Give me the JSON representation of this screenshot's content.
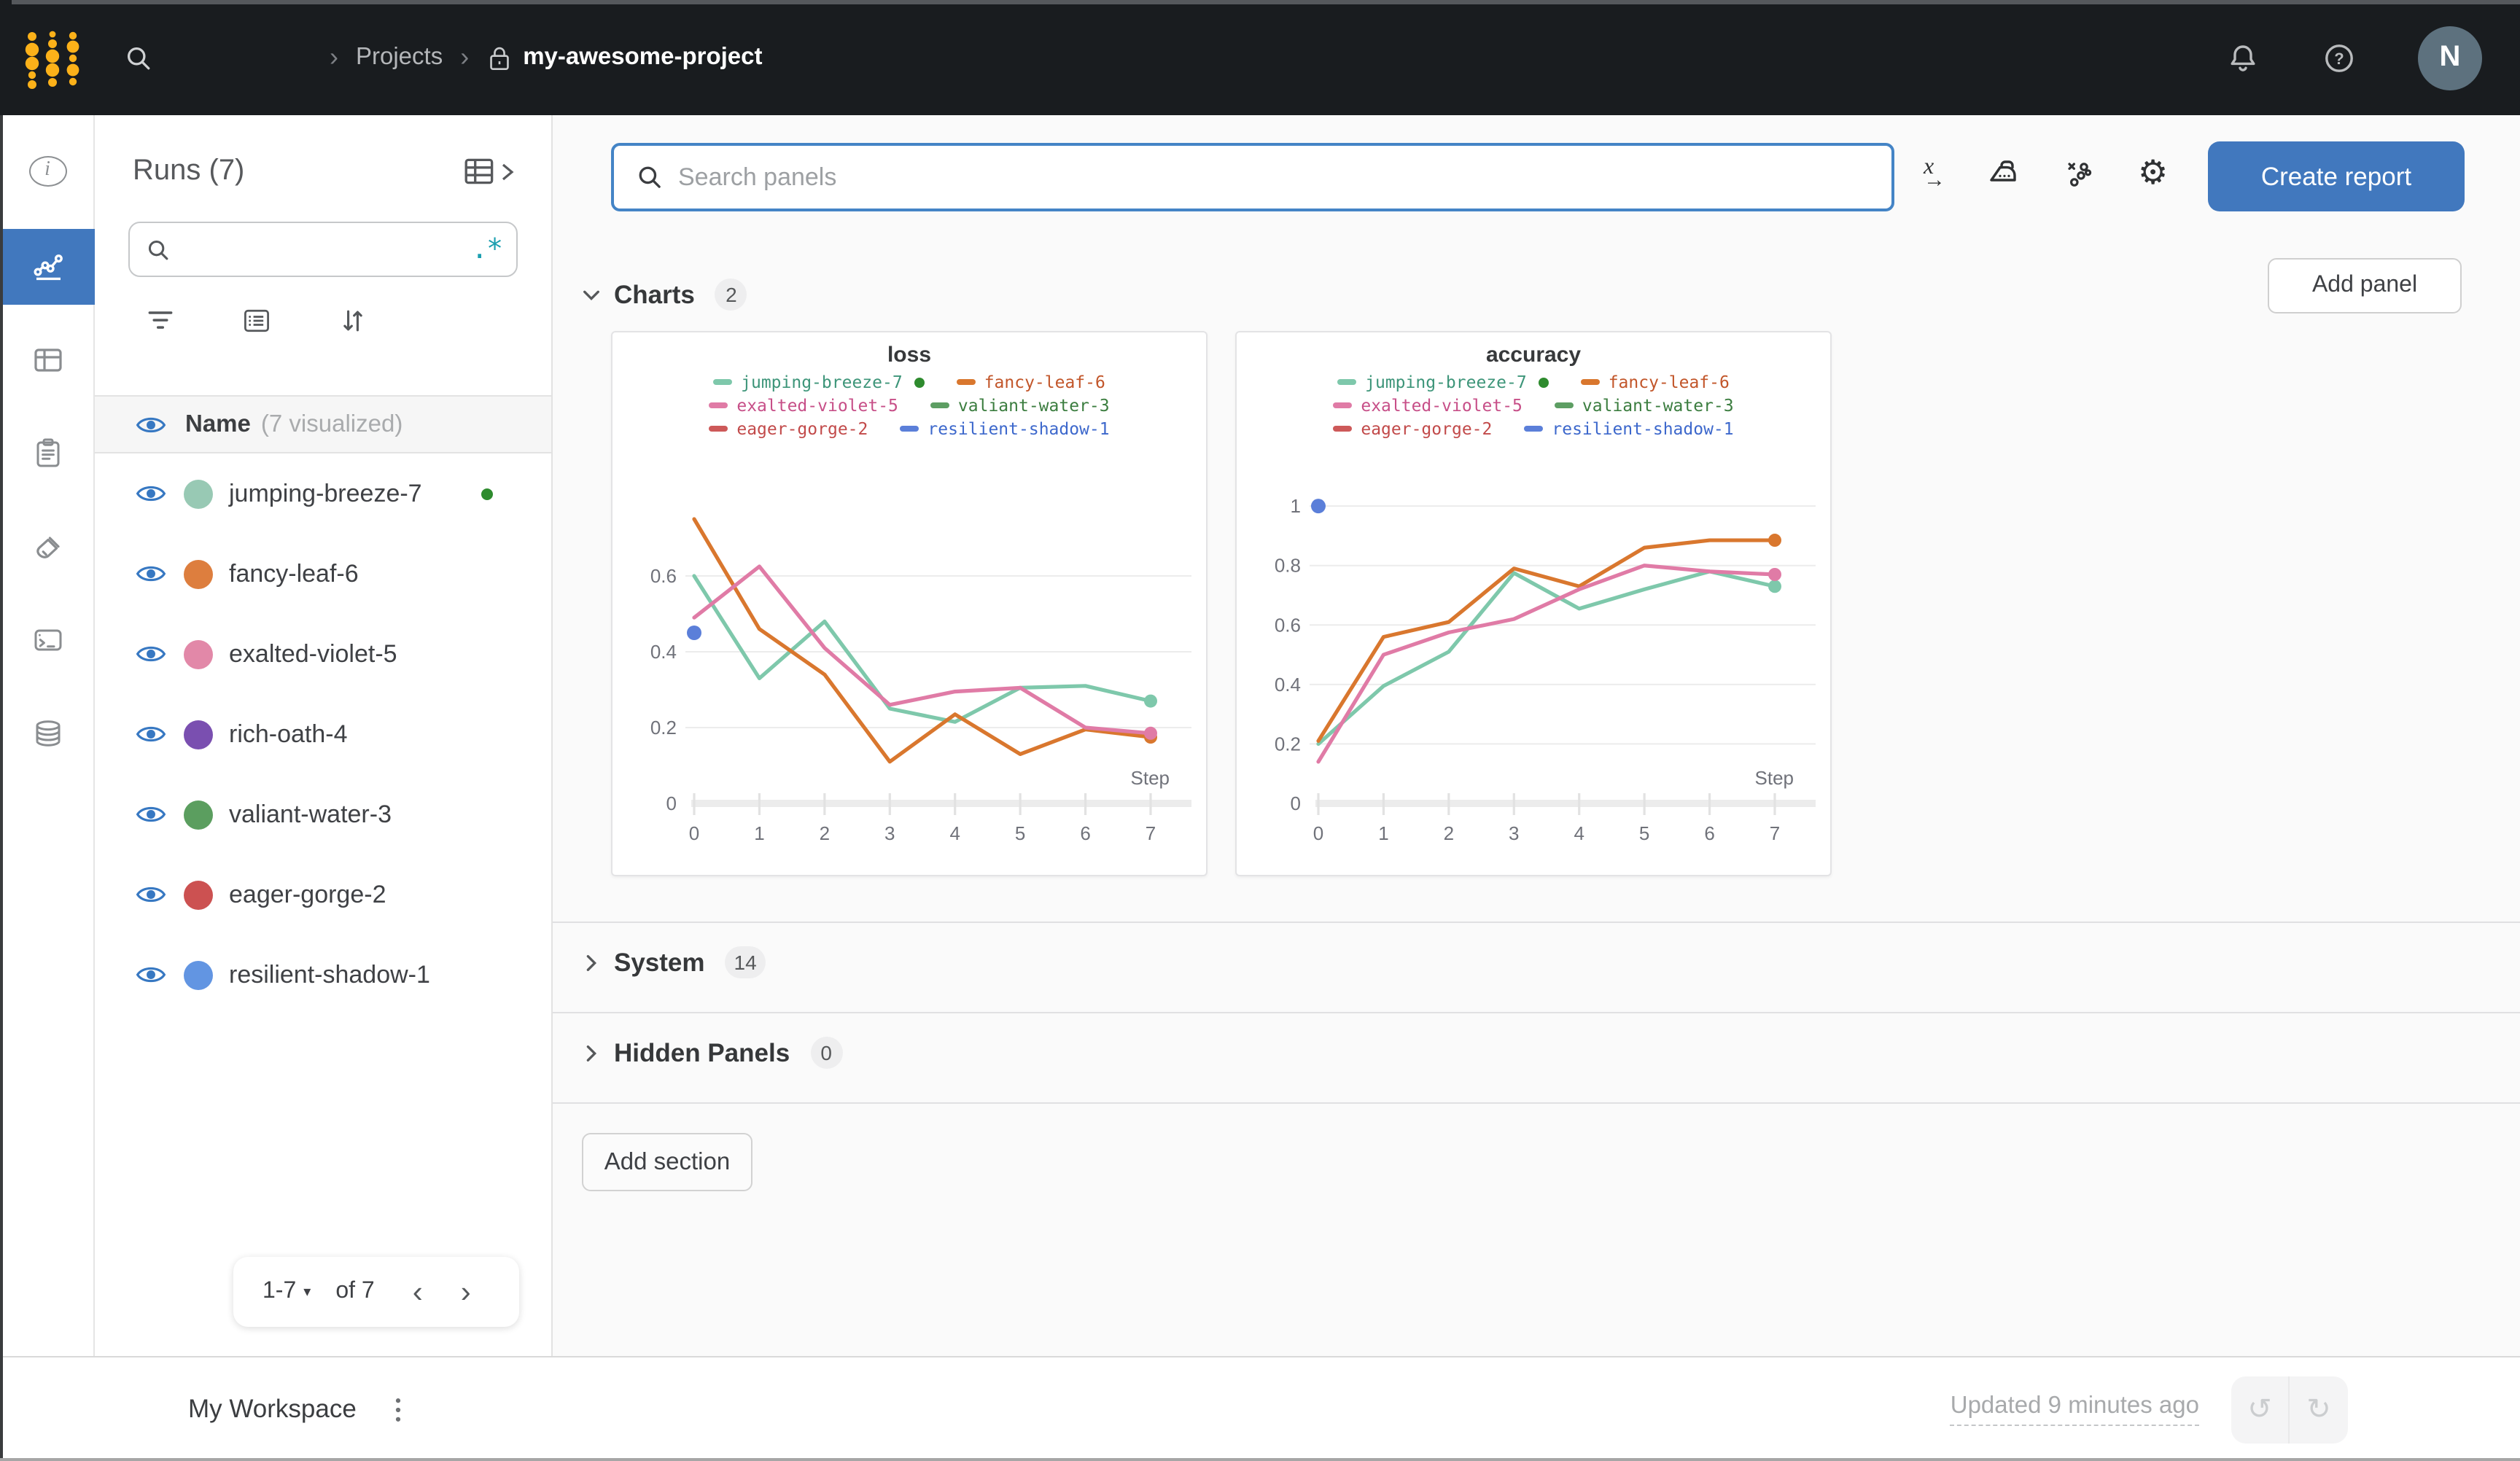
{
  "topbar": {
    "breadcrumb": {
      "separator": "›",
      "projects_label": "Projects",
      "project_name": "my-awesome-project"
    },
    "avatar_initial": "N"
  },
  "runs_panel": {
    "title": "Runs (7)",
    "search_placeholder": "",
    "regex_glyph": ".*",
    "header": {
      "name_label": "Name",
      "visualized_label": "(7 visualized)"
    },
    "runs": [
      {
        "name": "jumping-breeze-7",
        "color": "#98c9b4",
        "running": true
      },
      {
        "name": "fancy-leaf-6",
        "color": "#dd7e3e",
        "running": false
      },
      {
        "name": "exalted-violet-5",
        "color": "#e288a8",
        "running": false
      },
      {
        "name": "rich-oath-4",
        "color": "#7a4fb0",
        "running": false
      },
      {
        "name": "valiant-water-3",
        "color": "#5b9e5f",
        "running": false
      },
      {
        "name": "eager-gorge-2",
        "color": "#cc5151",
        "running": false
      },
      {
        "name": "resilient-shadow-1",
        "color": "#6295e2",
        "running": false
      }
    ],
    "pagination": {
      "range": "1-7",
      "caret": "▾",
      "of": "of 7",
      "prev": "‹",
      "next": "›"
    }
  },
  "main": {
    "search_placeholder": "Search panels",
    "create_report_label": "Create report",
    "add_panel_label": "Add panel",
    "add_section_label": "Add section",
    "sections": [
      {
        "label": "Charts",
        "count": "2"
      },
      {
        "label": "System",
        "count": "14"
      },
      {
        "label": "Hidden Panels",
        "count": "0"
      }
    ]
  },
  "footer": {
    "workspace_label": "My Workspace",
    "updated_label": "Updated 9 minutes ago",
    "undo_glyph": "↺",
    "redo_glyph": "↻"
  },
  "accent_colors": {
    "active_blue": "#4178be",
    "eye_blue": "#3778c2",
    "regex_teal": "#1b9fb0",
    "running_green": "#2e8b2e"
  },
  "chart_data": [
    {
      "type": "line",
      "title": "loss",
      "xlabel": "Step",
      "x": [
        0,
        1,
        2,
        3,
        4,
        5,
        6,
        7
      ],
      "ylim": [
        0,
        0.8
      ],
      "yticks": [
        0,
        0.2,
        0.4,
        0.6
      ],
      "grid": "horizontal",
      "legend_position": "top",
      "series": [
        {
          "name": "jumping-breeze-7",
          "color": "#7ec8ab",
          "label_color": "#3d9579",
          "running": true,
          "values": [
            0.6,
            0.33,
            0.48,
            0.25,
            0.215,
            0.305,
            0.31,
            0.27
          ],
          "end_dot": true
        },
        {
          "name": "fancy-leaf-6",
          "color": "#d9772e",
          "label_color": "#c2562a",
          "running": false,
          "values": [
            0.75,
            0.46,
            0.34,
            0.11,
            0.235,
            0.13,
            0.195,
            0.175
          ],
          "end_dot": true
        },
        {
          "name": "exalted-violet-5",
          "color": "#e07ba6",
          "label_color": "#c74f88",
          "running": false,
          "values": [
            0.49,
            0.625,
            0.41,
            0.26,
            0.295,
            0.305,
            0.2,
            0.185
          ],
          "end_dot": true
        },
        {
          "name": "valiant-water-3",
          "color": "#5d9e63",
          "label_color": "#3b7d3f",
          "running": false,
          "values": [],
          "end_dot": false
        },
        {
          "name": "eager-gorge-2",
          "color": "#cd5959",
          "label_color": "#c24a4a",
          "running": false,
          "values": [],
          "end_dot": false
        },
        {
          "name": "resilient-shadow-1",
          "color": "#5b7fd9",
          "label_color": "#3d68cc",
          "running": false,
          "values": [
            0.45
          ],
          "point_only": true
        }
      ]
    },
    {
      "type": "line",
      "title": "accuracy",
      "xlabel": "Step",
      "x": [
        0,
        1,
        2,
        3,
        4,
        5,
        6,
        7
      ],
      "ylim": [
        0,
        1.02
      ],
      "yticks": [
        0,
        0.2,
        0.4,
        0.6,
        0.8,
        1
      ],
      "grid": "horizontal",
      "legend_position": "top",
      "series": [
        {
          "name": "jumping-breeze-7",
          "color": "#7ec8ab",
          "label_color": "#3d9579",
          "running": true,
          "values": [
            0.2,
            0.395,
            0.51,
            0.775,
            0.655,
            0.72,
            0.78,
            0.73
          ],
          "end_dot": true
        },
        {
          "name": "fancy-leaf-6",
          "color": "#d9772e",
          "label_color": "#c2562a",
          "running": false,
          "values": [
            0.21,
            0.56,
            0.61,
            0.79,
            0.73,
            0.86,
            0.885,
            0.885
          ],
          "end_dot": true
        },
        {
          "name": "exalted-violet-5",
          "color": "#e07ba6",
          "label_color": "#c74f88",
          "running": false,
          "values": [
            0.14,
            0.5,
            0.575,
            0.62,
            0.72,
            0.8,
            0.78,
            0.77
          ],
          "end_dot": true
        },
        {
          "name": "valiant-water-3",
          "color": "#5d9e63",
          "label_color": "#3b7d3f",
          "running": false,
          "values": [],
          "end_dot": false
        },
        {
          "name": "eager-gorge-2",
          "color": "#cd5959",
          "label_color": "#c24a4a",
          "running": false,
          "values": [],
          "end_dot": false
        },
        {
          "name": "resilient-shadow-1",
          "color": "#5b7fd9",
          "label_color": "#3d68cc",
          "running": false,
          "values": [
            1.0
          ],
          "point_only": true
        }
      ]
    }
  ]
}
